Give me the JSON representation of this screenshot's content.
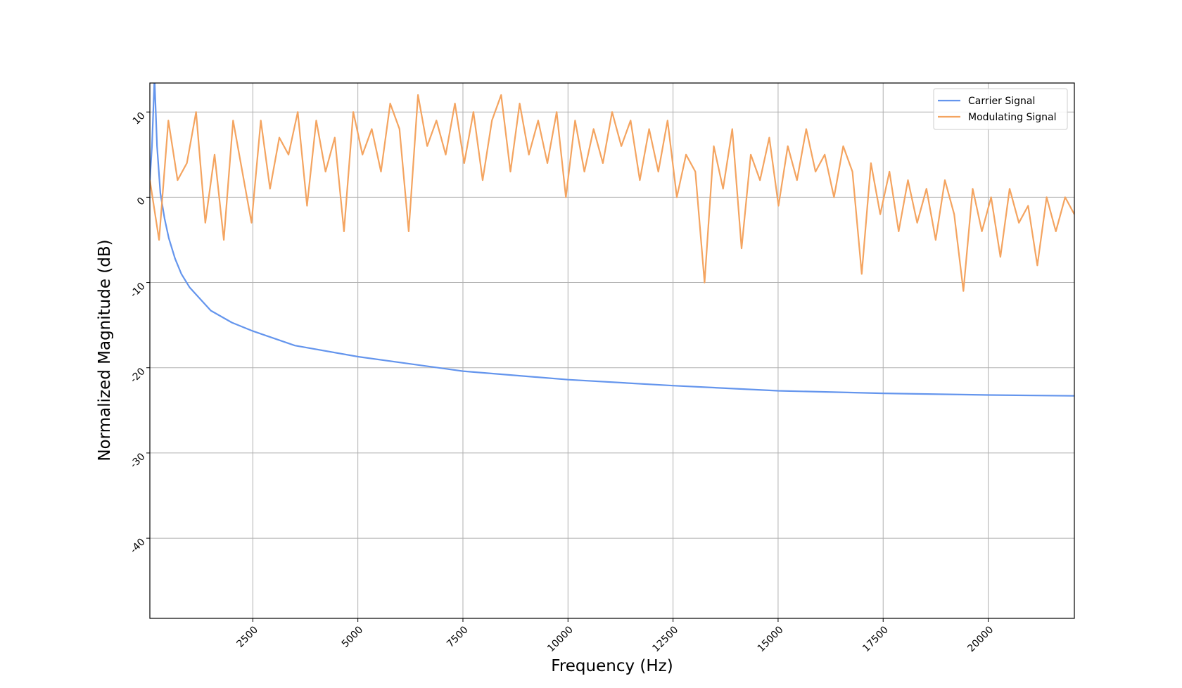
{
  "chart_data": {
    "type": "line",
    "xlabel": "Frequency (Hz)",
    "ylabel": "Normalized Magnitude (dB)",
    "xlim": [
      50,
      22050
    ],
    "ylim": [
      -49.4,
      13.4
    ],
    "xticks": [
      2500,
      5000,
      7500,
      10000,
      12500,
      15000,
      17500,
      20000
    ],
    "yticks": [
      -40,
      -30,
      -20,
      -10,
      0,
      10
    ],
    "grid": true,
    "legend": "upper right",
    "series": [
      {
        "name": "Carrier Signal",
        "color": "#6495ed",
        "x": [
          50,
          100,
          160,
          220,
          300,
          400,
          500,
          650,
          800,
          1000,
          1500,
          2000,
          2500,
          3500,
          5000,
          7500,
          10000,
          12500,
          15000,
          17500,
          20000,
          22050
        ],
        "values": [
          2,
          6,
          14,
          6,
          0.5,
          -2.5,
          -4.8,
          -7.2,
          -9,
          -10.6,
          -13.3,
          -14.7,
          -15.7,
          -17.4,
          -18.7,
          -20.4,
          -21.4,
          -22.1,
          -22.7,
          -23.0,
          -23.2,
          -23.3
        ]
      },
      {
        "name": "Modulating Signal",
        "color": "#f4a460",
        "x": [
          50,
          270,
          490,
          710,
          930,
          1150,
          1370,
          1590,
          1810,
          2030,
          2250,
          2470,
          2690,
          2910,
          3130,
          3350,
          3570,
          3790,
          4010,
          4230,
          4450,
          4670,
          4890,
          5110,
          5330,
          5550,
          5770,
          5990,
          6210,
          6430,
          6650,
          6870,
          7090,
          7310,
          7530,
          7750,
          7970,
          8190,
          8410,
          8630,
          8850,
          9070,
          9290,
          9510,
          9730,
          9950,
          10170,
          10390,
          10610,
          10830,
          11050,
          11270,
          11490,
          11710,
          11930,
          12150,
          12370,
          12590,
          12810,
          13030,
          13250,
          13470,
          13690,
          13910,
          14130,
          14350,
          14570,
          14790,
          15010,
          15230,
          15450,
          15670,
          15890,
          16110,
          16330,
          16550,
          16770,
          16990,
          17210,
          17430,
          17650,
          17870,
          18090,
          18310,
          18530,
          18750,
          18970,
          19190,
          19410,
          19630,
          19850,
          20070,
          20290,
          20510,
          20730,
          20950,
          21170,
          21390,
          21610,
          21830,
          22050
        ],
        "values": [
          2,
          -5,
          9,
          2,
          4,
          10,
          -3,
          5,
          -5,
          9,
          3,
          -3,
          9,
          1,
          7,
          5,
          10,
          -1,
          9,
          3,
          7,
          -4,
          10,
          5,
          8,
          3,
          11,
          8,
          -4,
          12,
          6,
          9,
          5,
          11,
          4,
          10,
          2,
          9,
          12,
          3,
          11,
          5,
          9,
          4,
          10,
          0,
          9,
          3,
          8,
          4,
          10,
          6,
          9,
          2,
          8,
          3,
          9,
          0,
          5,
          3,
          -10,
          6,
          1,
          8,
          -6,
          5,
          2,
          7,
          -1,
          6,
          2,
          8,
          3,
          5,
          0,
          6,
          3,
          -9,
          4,
          -2,
          3,
          -4,
          2,
          -3,
          1,
          -5,
          2,
          -2,
          -11,
          1,
          -4,
          0,
          -7,
          1,
          -3,
          -1,
          -8,
          0,
          -4,
          0,
          -2
        ]
      }
    ]
  }
}
